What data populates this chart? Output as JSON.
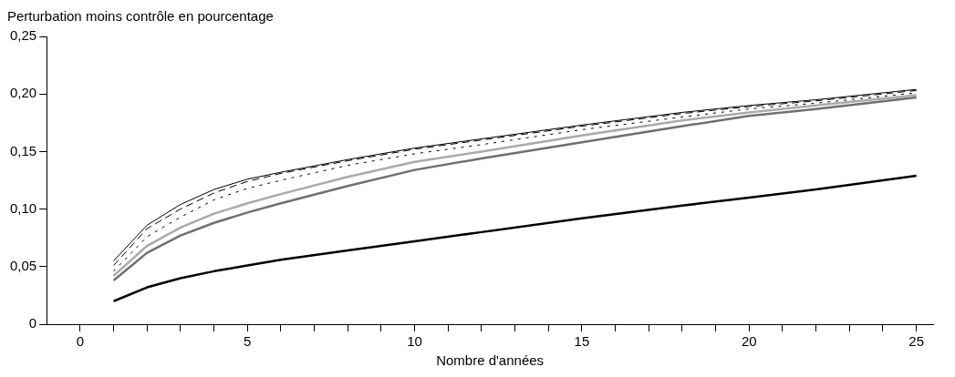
{
  "chart_data": {
    "type": "line",
    "ylabel": "Perturbation moins contrôle en pourcentage",
    "xlabel": "Nombre d'années",
    "x": [
      1,
      2,
      3,
      4,
      5,
      6,
      8,
      10,
      12,
      15,
      18,
      20,
      22,
      25
    ],
    "series": [
      {
        "color": "#000000",
        "line_style": "solid",
        "values": [
          0.055,
          0.086,
          0.104,
          0.117,
          0.126,
          0.132,
          0.143,
          0.153,
          0.161,
          0.173,
          0.184,
          0.19,
          0.195,
          0.204
        ]
      },
      {
        "color": "#000000",
        "line_style": "dashed",
        "values": [
          0.051,
          0.083,
          0.1,
          0.114,
          0.124,
          0.131,
          0.142,
          0.152,
          0.16,
          0.172,
          0.183,
          0.189,
          0.194,
          0.203
        ]
      },
      {
        "color": "#000000",
        "line_style": "dotted",
        "values": [
          0.046,
          0.076,
          0.093,
          0.108,
          0.118,
          0.125,
          0.138,
          0.148,
          0.156,
          0.169,
          0.18,
          0.187,
          0.192,
          0.201
        ]
      },
      {
        "color": "#aaaaaa",
        "line_style": "solid",
        "values": [
          0.042,
          0.068,
          0.084,
          0.096,
          0.105,
          0.113,
          0.128,
          0.141,
          0.15,
          0.164,
          0.177,
          0.184,
          0.19,
          0.199
        ]
      },
      {
        "color": "#707070",
        "line_style": "solid",
        "values": [
          0.038,
          0.062,
          0.077,
          0.088,
          0.097,
          0.105,
          0.12,
          0.134,
          0.144,
          0.158,
          0.172,
          0.181,
          0.187,
          0.197
        ]
      },
      {
        "color": "#000000",
        "line_style": "solid",
        "values": [
          0.02,
          0.032,
          0.04,
          0.046,
          0.051,
          0.056,
          0.064,
          0.072,
          0.08,
          0.092,
          0.103,
          0.11,
          0.117,
          0.129
        ]
      }
    ],
    "xlim": [
      -1,
      25.5
    ],
    "xticks": [
      0,
      {
        "value": 1,
        "label": null
      },
      {
        "value": 2,
        "label": null
      },
      {
        "value": 3,
        "label": null
      },
      {
        "value": 4,
        "label": null
      },
      5,
      {
        "value": 6,
        "label": null
      },
      {
        "value": 7,
        "label": null
      },
      {
        "value": 8,
        "label": null
      },
      {
        "value": 9,
        "label": null
      },
      10,
      {
        "value": 11,
        "label": null
      },
      {
        "value": 12,
        "label": null
      },
      {
        "value": 13,
        "label": null
      },
      {
        "value": 14,
        "label": null
      },
      15,
      {
        "value": 16,
        "label": null
      },
      {
        "value": 17,
        "label": null
      },
      {
        "value": 18,
        "label": null
      },
      {
        "value": 19,
        "label": null
      },
      20,
      {
        "value": 21,
        "label": null
      },
      {
        "value": 22,
        "label": null
      },
      {
        "value": 23,
        "label": null
      },
      {
        "value": 24,
        "label": null
      },
      25
    ],
    "ylim": [
      0,
      0.25
    ],
    "yticks": [
      0,
      {
        "value": 0.05,
        "label": "0,05"
      },
      {
        "value": 0.1,
        "label": "0,10"
      },
      {
        "value": 0.15,
        "label": "0,15"
      },
      {
        "value": 0.2,
        "label": "0,20"
      },
      {
        "value": 0.25,
        "label": "0,25"
      }
    ],
    "grid": false,
    "legend": false,
    "marker": "none"
  }
}
